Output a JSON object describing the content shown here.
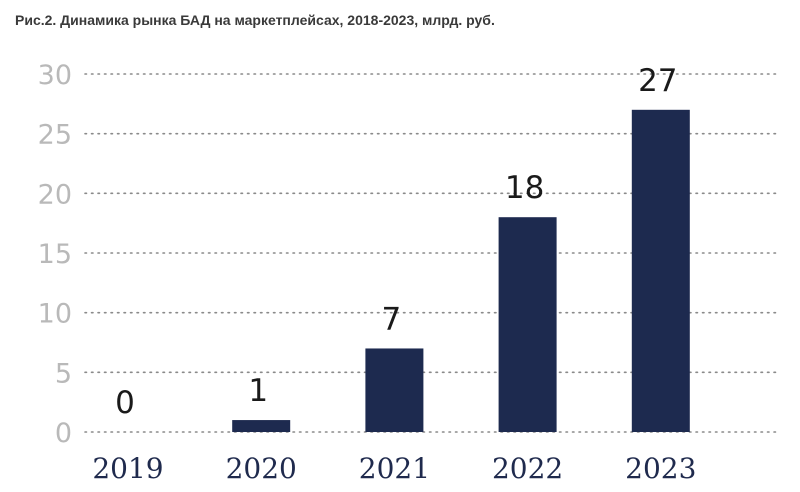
{
  "title": "Рис.2. Динамика рынка БАД на маркетплейсах, 2018-2023, млрд. руб.",
  "chart_data": {
    "type": "bar",
    "title": "Рис.2. Динамика рынка БАД на маркетплейсах, 2018-2023, млрд. руб.",
    "categories": [
      "2019",
      "2020",
      "2021",
      "2022",
      "2023"
    ],
    "values": [
      0,
      1,
      7,
      18,
      27
    ],
    "data_labels": [
      "0",
      "1",
      "7",
      "18",
      "27"
    ],
    "xlabel": "",
    "ylabel": "",
    "ylim": [
      0,
      30
    ],
    "yticks": [
      0,
      5,
      10,
      15,
      20,
      25,
      30
    ],
    "grid": true,
    "legend": "none",
    "bar_color": "#1d2a4f"
  }
}
